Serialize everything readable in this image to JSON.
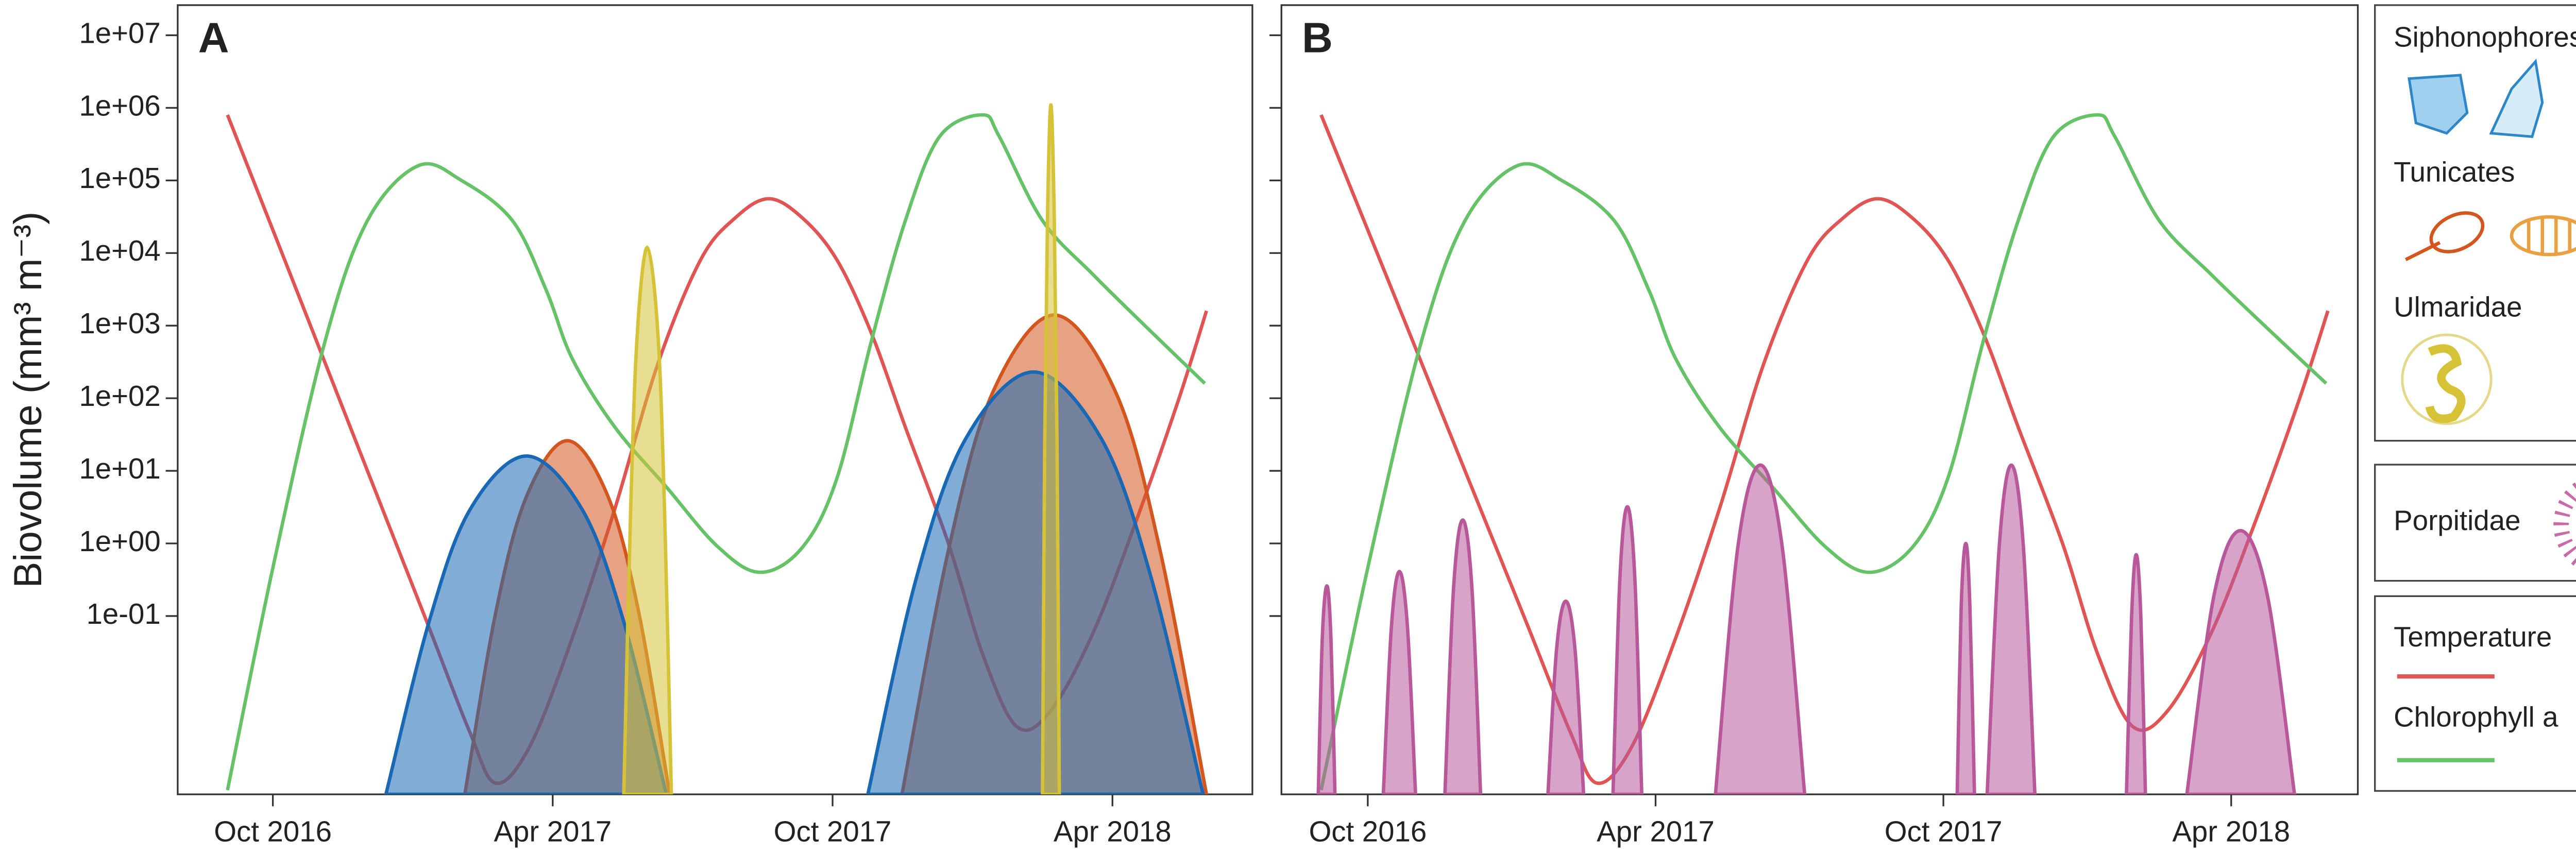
{
  "chart_data": [
    {
      "type": "line",
      "title": "A",
      "ylabel": "Biovolume (mm³ m⁻³)",
      "log": true,
      "xlim": [
        2016.58,
        2018.5
      ],
      "ylim": [
        0.00035,
        26000000
      ],
      "xticks": [
        {
          "value": 2016.75,
          "label": "Oct 2016"
        },
        {
          "value": 2017.25,
          "label": "Apr 2017"
        },
        {
          "value": 2017.75,
          "label": "Oct 2017"
        },
        {
          "value": 2018.25,
          "label": "Apr 2018"
        }
      ],
      "yticks": [
        {
          "value": 10000000,
          "label": "1e+07"
        },
        {
          "value": 1000000,
          "label": "1e+06"
        },
        {
          "value": 100000,
          "label": "1e+05"
        },
        {
          "value": 10000,
          "label": "1e+04"
        },
        {
          "value": 1000,
          "label": "1e+03"
        },
        {
          "value": 100,
          "label": "1e+02"
        },
        {
          "value": 10,
          "label": "1e+01"
        },
        {
          "value": 1,
          "label": "1e+00"
        },
        {
          "value": 0.1,
          "label": "1e-01"
        }
      ],
      "series": [
        {
          "name": "Temperature",
          "color": "#e05454",
          "fill": false,
          "x": [
            2016.669,
            2016.797,
            2016.919,
            2017.026,
            2017.102,
            2017.148,
            2017.209,
            2017.285,
            2017.361,
            2017.438,
            2017.514,
            2017.575,
            2017.636,
            2017.697,
            2017.758,
            2017.819,
            2017.88,
            2017.957,
            2018.018,
            2018.079,
            2018.14,
            2018.216,
            2018.292,
            2018.369,
            2018.418
          ],
          "values": [
            800000,
            2500,
            10,
            0.08,
            0.0025,
            0.0005,
            0.0016,
            0.05,
            3,
            300,
            8000,
            30000,
            56000,
            30000,
            8000,
            800,
            40,
            1,
            0.03,
            0.003,
            0.005,
            0.06,
            2,
            100,
            1600
          ]
        },
        {
          "name": "Chlorophyll a",
          "color": "#66c266",
          "fill": false,
          "x": [
            2016.669,
            2016.751,
            2016.843,
            2016.919,
            2017.01,
            2017.087,
            2017.178,
            2017.239,
            2017.285,
            2017.361,
            2017.453,
            2017.545,
            2017.621,
            2017.697,
            2017.758,
            2017.819,
            2017.88,
            2017.941,
            2018.018,
            2018.048,
            2018.125,
            2018.216,
            2018.308,
            2018.415
          ],
          "values": [
            0.0004,
            0.5,
            600,
            28000,
            160000,
            100000,
            28000,
            3000,
            350,
            40,
            6,
            0.9,
            0.4,
            0.9,
            8,
            600,
            28000,
            400000,
            800000,
            400000,
            28000,
            5000,
            1000,
            160
          ]
        },
        {
          "name": "Tunicates",
          "color": "#d2561e",
          "fill": true,
          "x": [
            2017.093,
            2017.148,
            2017.203,
            2017.276,
            2017.349,
            2017.404,
            2017.459,
            2017.6,
            2017.874,
            2017.957,
            2018.036,
            2018.146,
            2018.256,
            2018.335,
            2018.418
          ],
          "values": [
            0.00035,
            0.11,
            4.4,
            26,
            4.4,
            0.11,
            0.00035,
            null,
            0.00035,
            0.81,
            120,
            1400,
            120,
            0.81,
            0.00035
          ]
        },
        {
          "name": "Siphonophores",
          "color": "#1868b4",
          "fill": true,
          "x": [
            2016.952,
            2017.029,
            2017.102,
            2017.203,
            2017.303,
            2017.377,
            2017.453,
            2017.6,
            2017.813,
            2017.899,
            2017.987,
            2018.109,
            2018.231,
            2018.32,
            2018.412
          ],
          "values": [
            0.00035,
            0.083,
            2.9,
            16,
            2.9,
            0.083,
            0.00035,
            null,
            0.00035,
            0.32,
            27,
            230,
            27,
            0.32,
            0.00035
          ]
        },
        {
          "name": "Ulmaridae",
          "color": "#d6c236",
          "fill": true,
          "x": [
            2017.377,
            2017.389,
            2017.401,
            2017.419,
            2017.438,
            2017.45,
            2017.462,
            2017.8,
            2018.125,
            2018.129,
            2018.134,
            2018.14,
            2018.146,
            2018.151,
            2018.155
          ],
          "values": [
            0.00035,
            2.5,
            760,
            12000,
            760,
            2.5,
            0.00035,
            null,
            0.00035,
            25,
            33000,
            1100000,
            33000,
            25,
            0.00035
          ]
        }
      ]
    },
    {
      "type": "line",
      "title": "B",
      "log": true,
      "xlim": [
        2016.6,
        2018.47
      ],
      "ylim": [
        0.00035,
        26000000
      ],
      "xticks": [
        {
          "value": 2016.75,
          "label": "Oct 2016"
        },
        {
          "value": 2017.25,
          "label": "Apr 2017"
        },
        {
          "value": 2017.75,
          "label": "Oct 2017"
        },
        {
          "value": 2018.25,
          "label": "Apr 2018"
        }
      ],
      "yticks": [
        10000000,
        1000000,
        100000,
        10000,
        1000,
        100,
        10,
        1,
        0.1
      ],
      "series": [
        {
          "name": "Temperature",
          "color": "#e05454",
          "fill": false,
          "x": [
            2016.669,
            2016.797,
            2016.919,
            2017.026,
            2017.102,
            2017.148,
            2017.209,
            2017.285,
            2017.361,
            2017.438,
            2017.514,
            2017.575,
            2017.636,
            2017.697,
            2017.758,
            2017.819,
            2017.88,
            2017.957,
            2018.018,
            2018.079,
            2018.14,
            2018.216,
            2018.292,
            2018.369,
            2018.418
          ],
          "values": [
            800000,
            2500,
            10,
            0.08,
            0.0025,
            0.0005,
            0.0016,
            0.05,
            3,
            300,
            8000,
            30000,
            56000,
            30000,
            8000,
            800,
            40,
            1,
            0.03,
            0.003,
            0.005,
            0.06,
            2,
            100,
            1600
          ]
        },
        {
          "name": "Chlorophyll a",
          "color": "#66c266",
          "fill": false,
          "x": [
            2016.669,
            2016.751,
            2016.843,
            2016.919,
            2017.01,
            2017.087,
            2017.178,
            2017.239,
            2017.285,
            2017.361,
            2017.453,
            2017.545,
            2017.621,
            2017.697,
            2017.758,
            2017.819,
            2017.88,
            2017.941,
            2018.018,
            2018.048,
            2018.125,
            2018.216,
            2018.308,
            2018.415
          ],
          "values": [
            0.0004,
            0.5,
            600,
            28000,
            160000,
            100000,
            28000,
            3000,
            350,
            40,
            6,
            0.9,
            0.4,
            0.9,
            8,
            600,
            28000,
            400000,
            800000,
            400000,
            28000,
            5000,
            1000,
            160
          ]
        },
        {
          "name": "Porpitidae",
          "color": "#b8579a",
          "fill": true,
          "x": [
            2016.664,
            2016.671,
            2016.679,
            2016.686,
            2016.693,
            2016.735,
            2016.777,
            2016.791,
            2016.805,
            2016.819,
            2016.833,
            2016.86,
            2016.884,
            2016.899,
            2016.915,
            2016.931,
            2016.946,
            2017.0,
            2017.063,
            2017.078,
            2017.094,
            2017.11,
            2017.125,
            2017.15,
            2017.176,
            2017.188,
            2017.201,
            2017.214,
            2017.226,
            2017.3,
            2017.354,
            2017.393,
            2017.432,
            2017.47,
            2017.509,
            2017.65,
            2017.774,
            2017.781,
            2017.789,
            2017.796,
            2017.804,
            2017.815,
            2017.826,
            2017.847,
            2017.868,
            2017.889,
            2017.909,
            2018.0,
            2018.068,
            2018.077,
            2018.085,
            2018.093,
            2018.101,
            2018.14,
            2018.173,
            2018.22,
            2018.266,
            2018.313,
            2018.36
          ],
          "values": [
            0.00035,
            0.05,
            0.26,
            0.05,
            0.00035,
            null,
            0.00035,
            0.07,
            0.41,
            0.07,
            0.00035,
            null,
            0.00035,
            0.24,
            2.1,
            0.24,
            0.00035,
            null,
            0.00035,
            0.035,
            0.16,
            0.035,
            0.00035,
            null,
            0.00035,
            0.33,
            3.2,
            0.33,
            0.00035,
            null,
            0.00035,
            0.9,
            12,
            0.9,
            0.00035,
            null,
            0.00035,
            0.14,
            1,
            0.14,
            0.00035,
            null,
            0.00035,
            0.9,
            12,
            0.9,
            0.00035,
            null,
            0.00035,
            0.1,
            0.7,
            0.1,
            0.00035,
            null,
            0.00035,
            0.19,
            1.5,
            0.19,
            0.00035
          ]
        }
      ]
    }
  ]
}
